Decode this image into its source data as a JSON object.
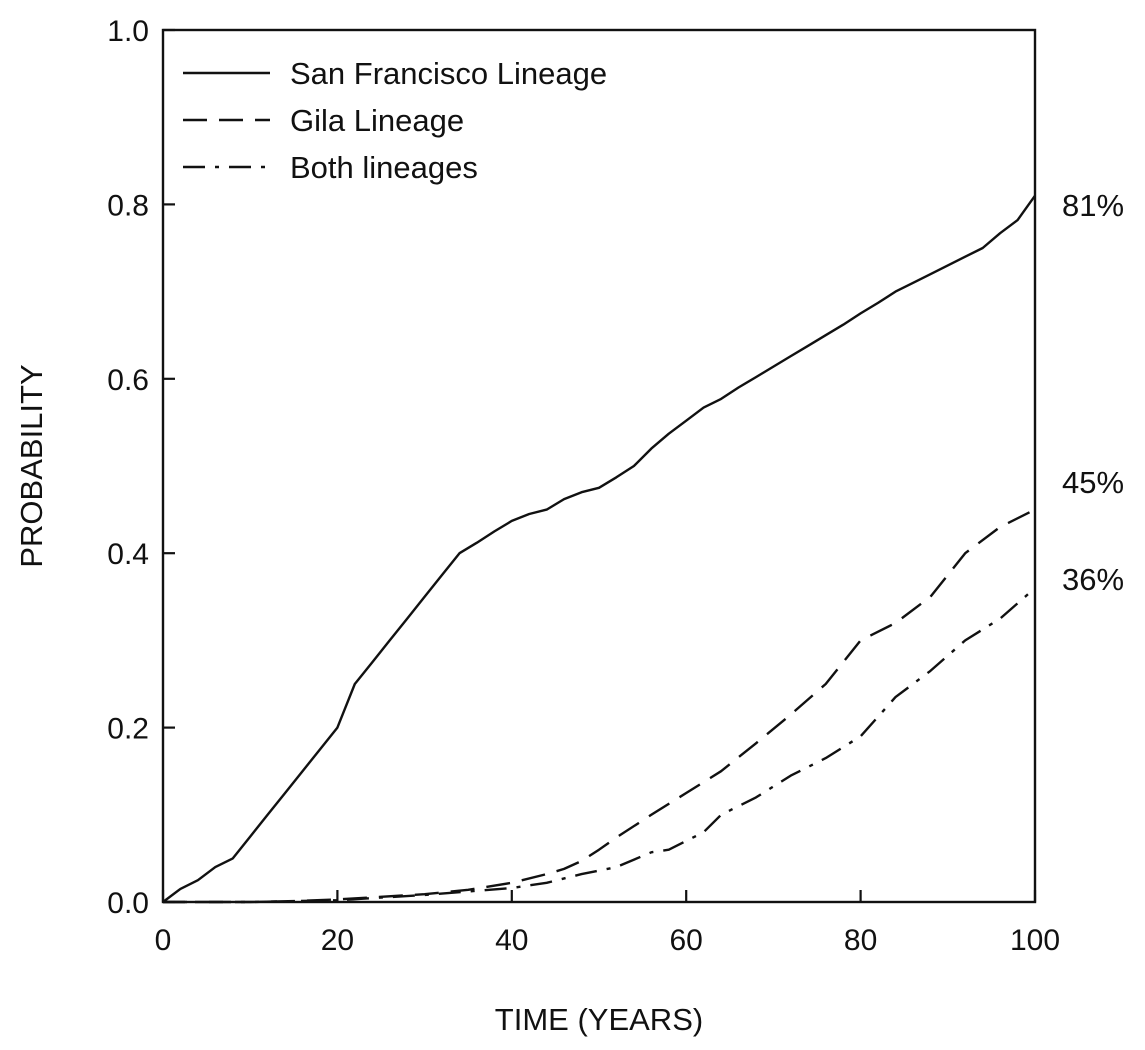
{
  "chart_data": {
    "type": "line",
    "xlabel": "TIME (YEARS)",
    "ylabel": "PROBABILITY",
    "xlim": [
      0,
      100
    ],
    "ylim": [
      0,
      1.0
    ],
    "xticks": [
      0,
      20,
      40,
      60,
      80,
      100
    ],
    "xtick_labels": [
      "0",
      "20",
      "40",
      "60",
      "80",
      "100"
    ],
    "yticks": [
      0,
      0.2,
      0.4,
      0.6,
      0.8,
      1.0
    ],
    "ytick_labels": [
      "0.0",
      "0.2",
      "0.4",
      "0.6",
      "0.8",
      "1.0"
    ],
    "grid": false,
    "legend_position": "top-left",
    "series": [
      {
        "name": "San Francisco Lineage",
        "style": "solid",
        "end_label": "81%",
        "x": [
          0,
          2,
          4,
          6,
          8,
          10,
          12,
          14,
          16,
          18,
          20,
          22,
          24,
          26,
          28,
          30,
          32,
          34,
          36,
          38,
          40,
          42,
          44,
          46,
          48,
          50,
          52,
          54,
          56,
          58,
          60,
          62,
          64,
          66,
          68,
          70,
          72,
          74,
          76,
          78,
          80,
          82,
          84,
          86,
          88,
          90,
          92,
          94,
          96,
          98,
          100
        ],
        "y": [
          0,
          0.015,
          0.025,
          0.04,
          0.05,
          0.075,
          0.1,
          0.125,
          0.15,
          0.175,
          0.2,
          0.25,
          0.275,
          0.3,
          0.325,
          0.35,
          0.375,
          0.4,
          0.412,
          0.425,
          0.437,
          0.445,
          0.45,
          0.462,
          0.47,
          0.475,
          0.487,
          0.5,
          0.52,
          0.537,
          0.552,
          0.567,
          0.577,
          0.59,
          0.602,
          0.614,
          0.626,
          0.638,
          0.65,
          0.662,
          0.675,
          0.687,
          0.7,
          0.71,
          0.72,
          0.73,
          0.74,
          0.75,
          0.767,
          0.782,
          0.81
        ]
      },
      {
        "name": "Gila Lineage",
        "style": "dashed",
        "end_label": "45%",
        "x": [
          0,
          10,
          15,
          20,
          25,
          30,
          35,
          40,
          44,
          46,
          48,
          50,
          52,
          56,
          60,
          64,
          68,
          72,
          76,
          80,
          84,
          88,
          92,
          96,
          100
        ],
        "y": [
          0,
          0,
          0.001,
          0.003,
          0.006,
          0.009,
          0.014,
          0.022,
          0.032,
          0.038,
          0.047,
          0.06,
          0.074,
          0.1,
          0.125,
          0.15,
          0.182,
          0.215,
          0.25,
          0.3,
          0.32,
          0.35,
          0.4,
          0.43,
          0.45
        ]
      },
      {
        "name": "Both lineages",
        "style": "dash-dot",
        "end_label": "36%",
        "x": [
          0,
          10,
          15,
          20,
          25,
          30,
          35,
          40,
          44,
          48,
          52,
          56,
          58,
          62,
          64,
          68,
          72,
          76,
          80,
          84,
          88,
          92,
          96,
          100
        ],
        "y": [
          0,
          0,
          0.001,
          0.002,
          0.005,
          0.008,
          0.012,
          0.016,
          0.022,
          0.032,
          0.04,
          0.057,
          0.06,
          0.08,
          0.1,
          0.12,
          0.145,
          0.165,
          0.19,
          0.235,
          0.265,
          0.3,
          0.325,
          0.36
        ]
      }
    ]
  }
}
